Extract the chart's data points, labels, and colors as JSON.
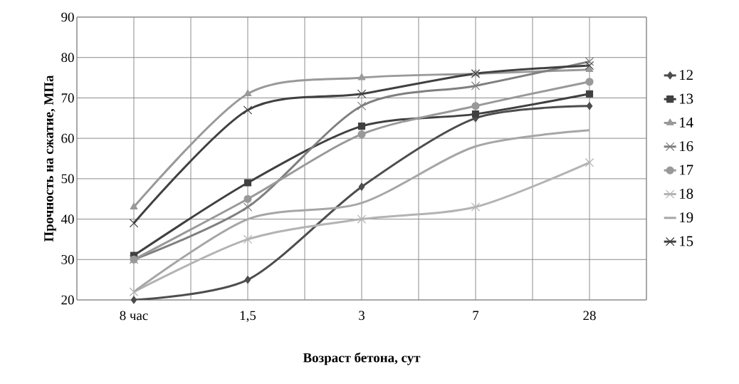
{
  "chart_data": {
    "type": "line",
    "xlabel": "Возраст бетона, сут",
    "ylabel": "Прочность на сжатие, МПа",
    "categories": [
      "8 час",
      "1,5",
      "3",
      "7",
      "28"
    ],
    "ylim": [
      20,
      90
    ],
    "yticks": [
      20,
      30,
      40,
      50,
      60,
      70,
      80,
      90
    ],
    "grid": true,
    "legend": "right",
    "series": [
      {
        "name": "12",
        "color": "#4d4d4d",
        "marker": "diamond",
        "values": [
          20,
          25,
          48,
          65,
          68
        ]
      },
      {
        "name": "13",
        "color": "#404040",
        "marker": "square",
        "values": [
          31,
          49,
          63,
          66,
          71
        ]
      },
      {
        "name": "14",
        "color": "#999999",
        "marker": "triangle",
        "values": [
          43,
          71,
          75,
          76,
          77
        ]
      },
      {
        "name": "16",
        "color": "#7f7f7f",
        "marker": "cross",
        "values": [
          30,
          43,
          68,
          73,
          79
        ]
      },
      {
        "name": "17",
        "color": "#999999",
        "marker": "circle",
        "values": [
          30,
          45,
          61,
          68,
          74
        ]
      },
      {
        "name": "18",
        "color": "#b3b3b3",
        "marker": "cross",
        "values": [
          22,
          35,
          40,
          43,
          54
        ]
      },
      {
        "name": "19",
        "color": "#a6a6a6",
        "marker": "none",
        "values": [
          22,
          40,
          44,
          58,
          62
        ]
      },
      {
        "name": "15",
        "color": "#404040",
        "marker": "cross",
        "values": [
          39,
          67,
          71,
          76,
          78
        ]
      }
    ]
  }
}
